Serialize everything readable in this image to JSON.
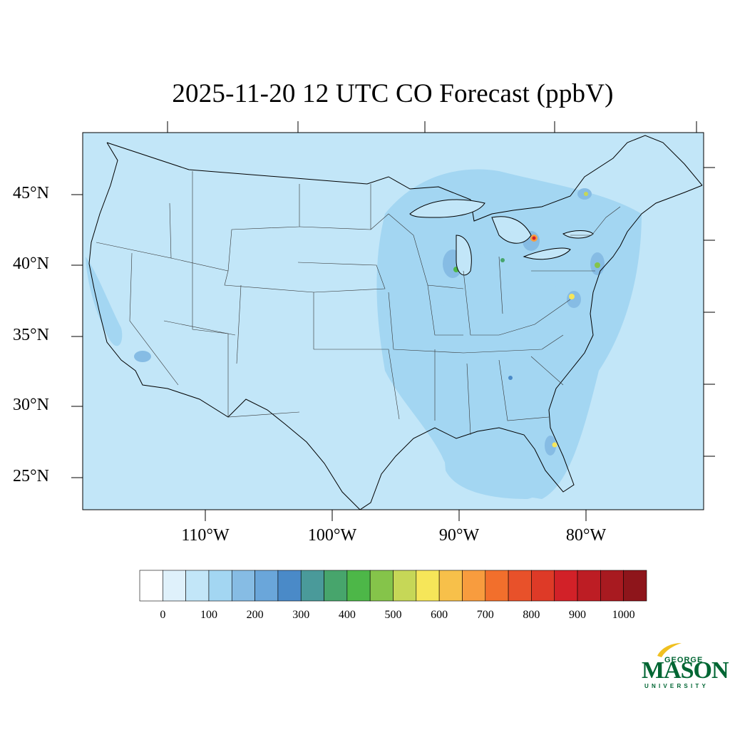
{
  "title": "2025-11-20 12 UTC CO Forecast (ppbV)",
  "lat_labels": [
    "45°N",
    "40°N",
    "35°N",
    "30°N",
    "25°N"
  ],
  "lon_labels": [
    "110°W",
    "100°W",
    "90°W",
    "80°W"
  ],
  "colorbar": {
    "tick_labels": [
      "0",
      "100",
      "200",
      "300",
      "400",
      "500",
      "600",
      "700",
      "800",
      "900",
      "1000"
    ],
    "colors": [
      "#ffffff",
      "#dff1fb",
      "#c2e6f8",
      "#a3d6f2",
      "#86bce4",
      "#6aa6da",
      "#4a8ac8",
      "#4a9a9a",
      "#47a56c",
      "#4db748",
      "#85c44a",
      "#c6d757",
      "#f6e659",
      "#f7c04a",
      "#f89c3e",
      "#f26f2c",
      "#e8512a",
      "#de3a27",
      "#d22128",
      "#bd1d24",
      "#a81a20",
      "#8e151b"
    ]
  },
  "map": {
    "background_color": "#c2e6f8",
    "elevated_color": "#a3d6f2",
    "high_color": "#86bce4"
  },
  "logo": {
    "line1": "GEORGE",
    "line2": "MASON",
    "line3": "UNIVERSITY",
    "color": "#006633",
    "accent": "#f0c020"
  }
}
